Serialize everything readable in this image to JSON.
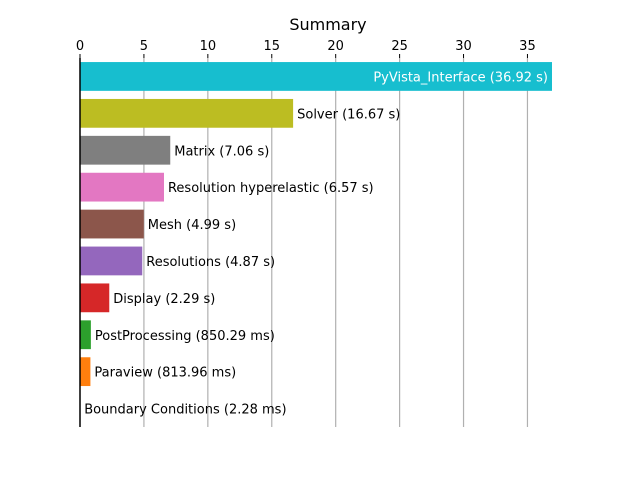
{
  "chart_data": {
    "type": "bar",
    "orientation": "horizontal",
    "title": "Summary",
    "xlabel": "",
    "ylabel": "",
    "xlim": [
      0,
      36.92
    ],
    "xticks": [
      0,
      5,
      10,
      15,
      20,
      25,
      30,
      35
    ],
    "grid": "vertical",
    "x_axis_position": "top",
    "bars": [
      {
        "category": "PyVista_Interface",
        "value": 36.92,
        "label": "PyVista_Interface (36.92 s)",
        "color": "#17becf",
        "label_inside": true
      },
      {
        "category": "Solver",
        "value": 16.67,
        "label": "Solver (16.67 s)",
        "color": "#bcbd22",
        "label_inside": false
      },
      {
        "category": "Matrix",
        "value": 7.06,
        "label": "Matrix (7.06 s)",
        "color": "#7f7f7f",
        "label_inside": false
      },
      {
        "category": "Resolution hyperelastic",
        "value": 6.57,
        "label": "Resolution hyperelastic (6.57 s)",
        "color": "#e377c2",
        "label_inside": false
      },
      {
        "category": "Mesh",
        "value": 4.99,
        "label": "Mesh (4.99 s)",
        "color": "#8c564b",
        "label_inside": false
      },
      {
        "category": "Resolutions",
        "value": 4.87,
        "label": "Resolutions (4.87 s)",
        "color": "#9467bd",
        "label_inside": false
      },
      {
        "category": "Display",
        "value": 2.29,
        "label": "Display (2.29 s)",
        "color": "#d62728",
        "label_inside": false
      },
      {
        "category": "PostProcessing",
        "value": 0.85029,
        "label": "PostProcessing (850.29 ms)",
        "color": "#2ca02c",
        "label_inside": false
      },
      {
        "category": "Paraview",
        "value": 0.81396,
        "label": "Paraview (813.96 ms)",
        "color": "#ff7f0e",
        "label_inside": false
      },
      {
        "category": "Boundary Conditions",
        "value": 0.00228,
        "label": "Boundary Conditions (2.28 ms)",
        "color": "#1f77b4",
        "label_inside": false
      }
    ]
  }
}
